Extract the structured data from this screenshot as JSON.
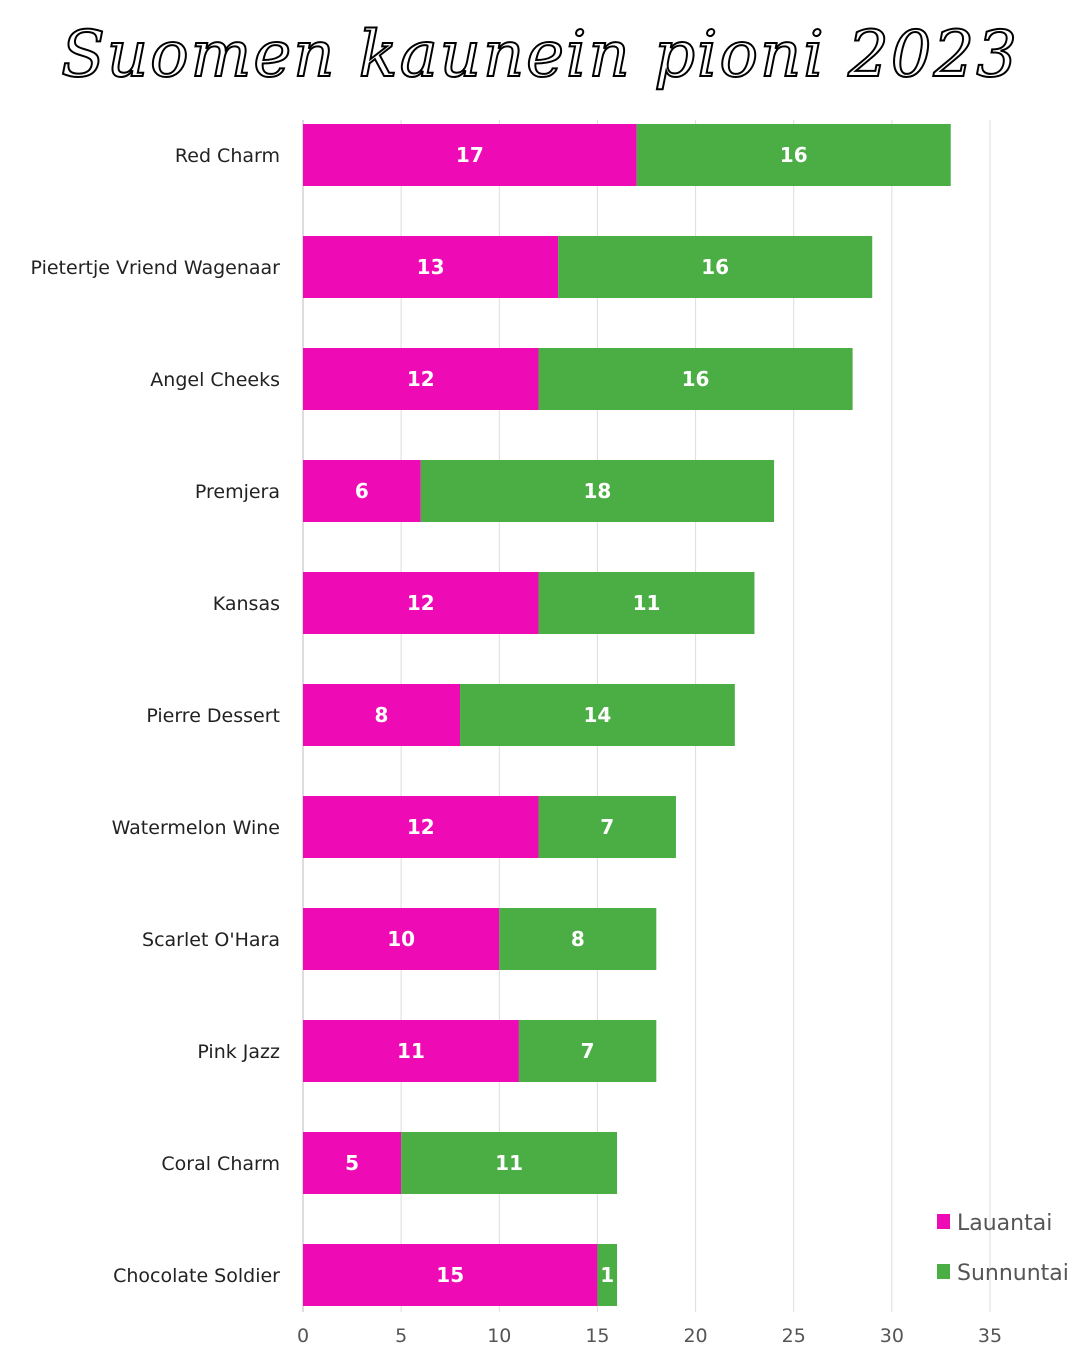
{
  "chart_data": {
    "type": "bar",
    "orientation": "horizontal",
    "stacked": true,
    "title": "Suomen kaunein pioni 2023",
    "categories": [
      "Red Charm",
      "Pietertje Vriend Wagenaar",
      "Angel Cheeks",
      "Premjera",
      "Kansas",
      "Pierre Dessert",
      "Watermelon Wine",
      "Scarlet O'Hara",
      "Pink Jazz",
      "Coral Charm",
      "Chocolate Soldier"
    ],
    "series": [
      {
        "name": "Lauantai",
        "color": "#EE0AB4",
        "values": [
          17,
          13,
          12,
          6,
          12,
          8,
          12,
          10,
          11,
          5,
          15
        ]
      },
      {
        "name": "Sunnuntai",
        "color": "#4BAE45",
        "values": [
          16,
          16,
          16,
          18,
          11,
          14,
          7,
          8,
          7,
          11,
          1
        ]
      }
    ],
    "xlim": [
      0,
      35
    ],
    "xticks": [
      0,
      5,
      10,
      15,
      20,
      25,
      30,
      35
    ],
    "grid": "vertical",
    "legend": "bottom-right",
    "data_labels": true
  }
}
